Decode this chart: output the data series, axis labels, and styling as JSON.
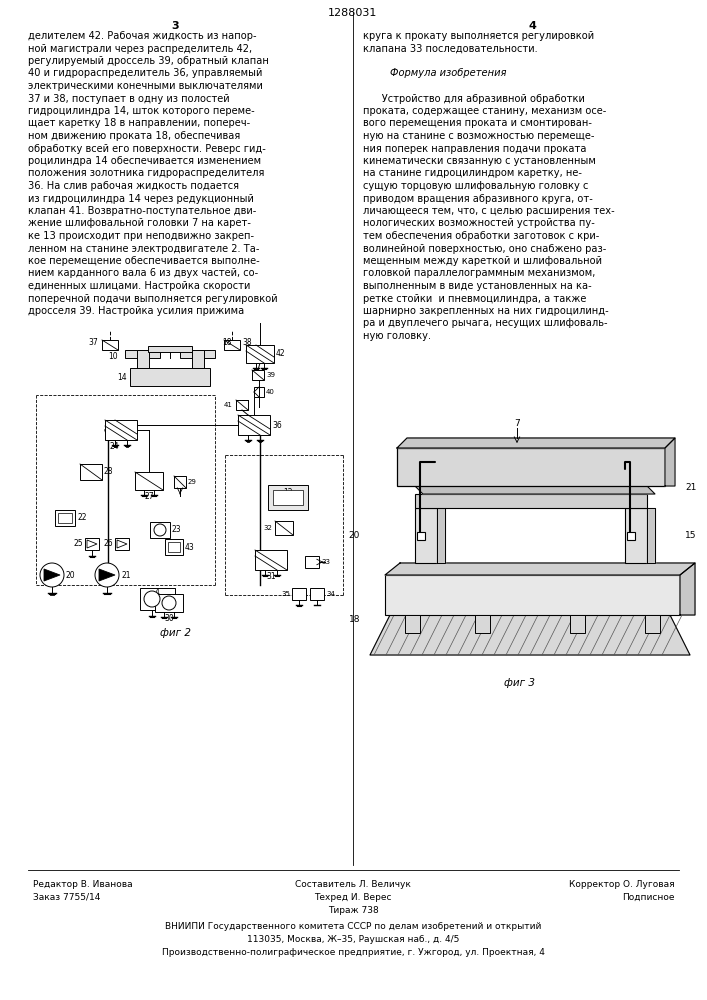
{
  "page_number": "1288031",
  "col_left_number": "3",
  "col_right_number": "4",
  "background_color": "#ffffff",
  "text_color": "#000000",
  "col_left_text": [
    "делителем 42. Рабочая жидкость из напор-",
    "ной магистрали через распределитель 42,",
    "регулируемый дроссель 39, обратный клапан",
    "40 и гидрораспределитель 36, управляемый",
    "электрическими конечными выключателями",
    "37 и 38, поступает в одну из полостей",
    "гидроцилиндра 14, шток которого переме-",
    "щает каретку 18 в направлении, попереч-",
    "ном движению проката 18, обеспечивая",
    "обработку всей его поверхности. Реверс гид-",
    "роцилиндра 14 обеспечивается изменением",
    "положения золотника гидрораспределителя",
    "36. На слив рабочая жидкость подается",
    "из гидроцилиндра 14 через редукционный",
    "клапан 41. Возвратно-поступательное дви-",
    "жение шлифовальной головки 7 на карет-",
    "ке 13 происходит при неподвижно закреп-",
    "ленном на станине электродвигателе 2. Та-",
    "кое перемещение обеспечивается выполне-",
    "нием карданного вала 6 из двух частей, со-",
    "единенных шлицами. Настройка скорости",
    "поперечной подачи выполняется регулировкой",
    "дросселя 39. Настройка усилия прижима"
  ],
  "col_right_text": [
    "круга к прокату выполняется регулировкой",
    "клапана 33 последовательности.",
    "",
    "Формула изобретения",
    "",
    "      Устройство для абразивной обработки",
    "проката, содержащее станину, механизм осе-",
    "вого перемещения проката и смонтирован-",
    "ную на станине с возможностью перемеще-",
    "ния поперек направления подачи проката",
    "кинематически связанную с установленным",
    "на станине гидроцилиндром каретку, не-",
    "сущую торцовую шлифовальную головку с",
    "приводом вращения абразивного круга, от-",
    "личающееся тем, что, с целью расширения тех-",
    "нологических возможностей устройства пу-",
    "тем обеспечения обработки заготовок с кри-",
    "волинейной поверхностью, оно снабжено раз-",
    "мещенным между кареткой и шлифовальной",
    "головкой параллелограммным механизмом,",
    "выполненным в виде установленных на ка-",
    "ретке стойки  и пневмоцилиндра, а также",
    "шарнирно закрепленных на них гидроцилинд-",
    "ра и двуплечего рычага, несущих шлифоваль-",
    "ную головку."
  ],
  "formula_italic": "Формула изобретения",
  "footer_left1": "Редактор В. Иванова",
  "footer_left2": "Заказ 7755/14",
  "footer_center1": "Составитель Л. Величук",
  "footer_center2": "Техред И. Верес",
  "footer_center3": "Тираж 738",
  "footer_right1": "Корректор О. Луговая",
  "footer_right2": "Подписное",
  "footer_vniipи1": "ВНИИПИ Государственного комитета СССР по делам изобретений и открытий",
  "footer_vniipи2": "113035, Москва, Ж–35, Раушская наб., д. 4/5",
  "footer_vniipи3": "Производственно-полиграфическое предприятие, г. Ужгород, ул. Проектная, 4",
  "fig2_label": "фиг 2",
  "fig3_label": "фиг 3"
}
